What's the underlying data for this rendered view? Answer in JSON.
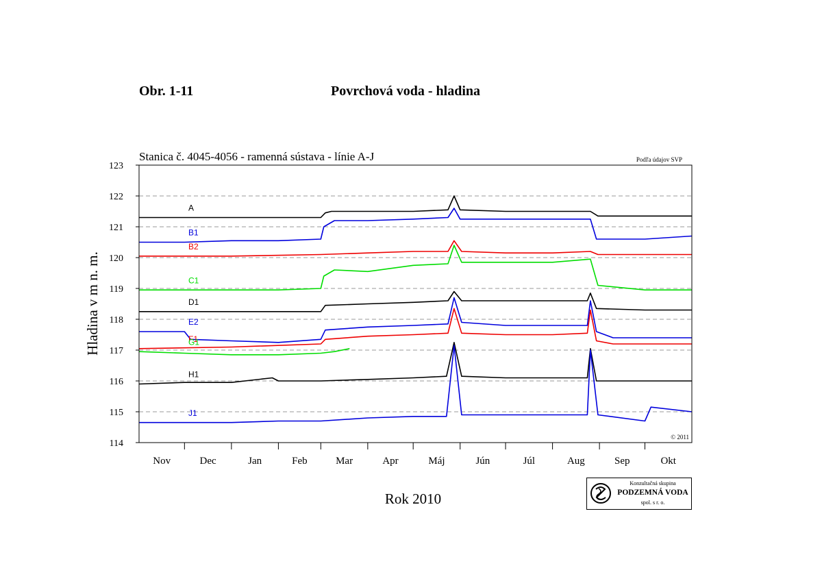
{
  "figure": {
    "label": "Obr. 1-11",
    "title": "Povrchová voda - hladina"
  },
  "chart_data": {
    "type": "line",
    "title": "Stanica č. 4045-4056 - ramenná sústava  - línie A-J",
    "source_note": "Podľa údajov SVP",
    "copyright": "© 2011",
    "xlabel": "Rok 2010",
    "ylabel": "Hladina v m n. m.",
    "ylim": [
      114,
      123
    ],
    "yticks": [
      114,
      115,
      116,
      117,
      118,
      119,
      120,
      121,
      122,
      123
    ],
    "xlim": [
      "2009-11-01",
      "2010-11-01"
    ],
    "months": [
      "Nov",
      "Dec",
      "Jan",
      "Feb",
      "Mar",
      "Apr",
      "Máj",
      "Jún",
      "Júl",
      "Aug",
      "Sep",
      "Okt"
    ],
    "grid": "dashed horizontal at each meter",
    "legend": "inline labels at left",
    "series": [
      {
        "name": "A",
        "color": "#000000",
        "points": [
          [
            "2009-11-01",
            121.3
          ],
          [
            "2009-12-01",
            121.3
          ],
          [
            "2010-01-01",
            121.3
          ],
          [
            "2010-02-01",
            121.3
          ],
          [
            "2010-03-01",
            121.3
          ],
          [
            "2010-03-04",
            121.45
          ],
          [
            "2010-03-08",
            121.5
          ],
          [
            "2010-04-01",
            121.5
          ],
          [
            "2010-05-01",
            121.5
          ],
          [
            "2010-05-24",
            121.55
          ],
          [
            "2010-05-28",
            122.0
          ],
          [
            "2010-06-01",
            121.55
          ],
          [
            "2010-07-01",
            121.5
          ],
          [
            "2010-08-01",
            121.5
          ],
          [
            "2010-08-26",
            121.5
          ],
          [
            "2010-08-31",
            121.35
          ],
          [
            "2010-10-01",
            121.35
          ],
          [
            "2010-11-01",
            121.35
          ]
        ]
      },
      {
        "name": "B1",
        "color": "#0000dd",
        "points": [
          [
            "2009-11-01",
            120.5
          ],
          [
            "2009-12-01",
            120.5
          ],
          [
            "2010-01-01",
            120.55
          ],
          [
            "2010-02-01",
            120.55
          ],
          [
            "2010-03-01",
            120.6
          ],
          [
            "2010-03-03",
            121.0
          ],
          [
            "2010-03-10",
            121.2
          ],
          [
            "2010-04-01",
            121.2
          ],
          [
            "2010-05-01",
            121.25
          ],
          [
            "2010-05-24",
            121.3
          ],
          [
            "2010-05-28",
            121.6
          ],
          [
            "2010-06-01",
            121.25
          ],
          [
            "2010-07-01",
            121.25
          ],
          [
            "2010-08-01",
            121.25
          ],
          [
            "2010-08-26",
            121.25
          ],
          [
            "2010-08-30",
            120.6
          ],
          [
            "2010-10-01",
            120.6
          ],
          [
            "2010-11-01",
            120.7
          ]
        ]
      },
      {
        "name": "B2",
        "color": "#ee0000",
        "points": [
          [
            "2009-11-01",
            120.05
          ],
          [
            "2010-01-01",
            120.05
          ],
          [
            "2010-03-01",
            120.1
          ],
          [
            "2010-04-01",
            120.15
          ],
          [
            "2010-05-01",
            120.2
          ],
          [
            "2010-05-24",
            120.2
          ],
          [
            "2010-05-28",
            120.55
          ],
          [
            "2010-06-02",
            120.2
          ],
          [
            "2010-07-01",
            120.15
          ],
          [
            "2010-08-01",
            120.15
          ],
          [
            "2010-08-26",
            120.2
          ],
          [
            "2010-08-31",
            120.1
          ],
          [
            "2010-11-01",
            120.1
          ]
        ]
      },
      {
        "name": "C1",
        "color": "#00dd00",
        "points": [
          [
            "2009-11-01",
            118.95
          ],
          [
            "2009-12-01",
            118.95
          ],
          [
            "2010-01-01",
            118.95
          ],
          [
            "2010-02-01",
            118.95
          ],
          [
            "2010-03-01",
            119.0
          ],
          [
            "2010-03-03",
            119.4
          ],
          [
            "2010-03-10",
            119.6
          ],
          [
            "2010-04-01",
            119.55
          ],
          [
            "2010-05-01",
            119.75
          ],
          [
            "2010-05-24",
            119.8
          ],
          [
            "2010-05-28",
            120.4
          ],
          [
            "2010-06-02",
            119.85
          ],
          [
            "2010-07-01",
            119.85
          ],
          [
            "2010-08-01",
            119.85
          ],
          [
            "2010-08-26",
            119.95
          ],
          [
            "2010-08-31",
            119.1
          ],
          [
            "2010-10-01",
            118.95
          ],
          [
            "2010-11-01",
            118.95
          ]
        ]
      },
      {
        "name": "D1",
        "color": "#000000",
        "points": [
          [
            "2009-11-01",
            118.25
          ],
          [
            "2010-01-01",
            118.25
          ],
          [
            "2010-03-01",
            118.25
          ],
          [
            "2010-03-04",
            118.45
          ],
          [
            "2010-04-01",
            118.5
          ],
          [
            "2010-05-01",
            118.55
          ],
          [
            "2010-05-24",
            118.6
          ],
          [
            "2010-05-28",
            118.9
          ],
          [
            "2010-06-02",
            118.6
          ],
          [
            "2010-07-01",
            118.6
          ],
          [
            "2010-08-01",
            118.6
          ],
          [
            "2010-08-24",
            118.6
          ],
          [
            "2010-08-26",
            118.85
          ],
          [
            "2010-08-30",
            118.35
          ],
          [
            "2010-10-01",
            118.3
          ],
          [
            "2010-11-01",
            118.3
          ]
        ]
      },
      {
        "name": "E2",
        "color": "#0000dd",
        "points": [
          [
            "2009-11-01",
            117.6
          ],
          [
            "2009-12-01",
            117.6
          ],
          [
            "2009-12-05",
            117.35
          ],
          [
            "2010-01-01",
            117.3
          ],
          [
            "2010-02-01",
            117.25
          ],
          [
            "2010-03-01",
            117.35
          ],
          [
            "2010-03-04",
            117.65
          ],
          [
            "2010-04-01",
            117.75
          ],
          [
            "2010-05-01",
            117.8
          ],
          [
            "2010-05-24",
            117.85
          ],
          [
            "2010-05-28",
            118.7
          ],
          [
            "2010-06-02",
            117.9
          ],
          [
            "2010-07-01",
            117.8
          ],
          [
            "2010-08-01",
            117.8
          ],
          [
            "2010-08-24",
            117.8
          ],
          [
            "2010-08-26",
            118.6
          ],
          [
            "2010-08-30",
            117.6
          ],
          [
            "2010-09-10",
            117.4
          ],
          [
            "2010-11-01",
            117.4
          ]
        ]
      },
      {
        "name": "F1",
        "color": "#ee0000",
        "points": [
          [
            "2009-11-01",
            117.05
          ],
          [
            "2010-01-01",
            117.1
          ],
          [
            "2010-03-01",
            117.2
          ],
          [
            "2010-03-04",
            117.35
          ],
          [
            "2010-04-01",
            117.45
          ],
          [
            "2010-05-01",
            117.5
          ],
          [
            "2010-05-24",
            117.55
          ],
          [
            "2010-05-28",
            118.35
          ],
          [
            "2010-06-02",
            117.55
          ],
          [
            "2010-07-01",
            117.5
          ],
          [
            "2010-08-01",
            117.5
          ],
          [
            "2010-08-24",
            117.55
          ],
          [
            "2010-08-26",
            118.3
          ],
          [
            "2010-08-30",
            117.3
          ],
          [
            "2010-09-10",
            117.2
          ],
          [
            "2010-11-01",
            117.2
          ]
        ]
      },
      {
        "name": "G1",
        "color": "#00dd00",
        "points": [
          [
            "2009-11-01",
            116.95
          ],
          [
            "2009-12-01",
            116.9
          ],
          [
            "2010-01-01",
            116.85
          ],
          [
            "2010-02-01",
            116.85
          ],
          [
            "2010-03-01",
            116.9
          ],
          [
            "2010-03-10",
            116.95
          ],
          [
            "2010-03-20",
            117.05
          ]
        ]
      },
      {
        "name": "H1",
        "color": "#000000",
        "points": [
          [
            "2009-11-01",
            115.9
          ],
          [
            "2009-12-01",
            115.95
          ],
          [
            "2010-01-01",
            115.95
          ],
          [
            "2010-01-28",
            116.1
          ],
          [
            "2010-02-01",
            116.0
          ],
          [
            "2010-03-01",
            116.0
          ],
          [
            "2010-04-01",
            116.05
          ],
          [
            "2010-05-01",
            116.1
          ],
          [
            "2010-05-23",
            116.15
          ],
          [
            "2010-05-28",
            117.25
          ],
          [
            "2010-06-02",
            116.15
          ],
          [
            "2010-07-01",
            116.1
          ],
          [
            "2010-08-01",
            116.1
          ],
          [
            "2010-08-24",
            116.1
          ],
          [
            "2010-08-26",
            117.05
          ],
          [
            "2010-08-30",
            116.0
          ],
          [
            "2010-11-01",
            116.0
          ]
        ]
      },
      {
        "name": "J1",
        "color": "#0000dd",
        "points": [
          [
            "2009-11-01",
            114.65
          ],
          [
            "2009-12-01",
            114.65
          ],
          [
            "2010-01-01",
            114.65
          ],
          [
            "2010-02-01",
            114.7
          ],
          [
            "2010-03-01",
            114.7
          ],
          [
            "2010-04-01",
            114.8
          ],
          [
            "2010-05-01",
            114.85
          ],
          [
            "2010-05-23",
            114.85
          ],
          [
            "2010-05-28",
            117.15
          ],
          [
            "2010-06-02",
            114.9
          ],
          [
            "2010-07-01",
            114.9
          ],
          [
            "2010-08-01",
            114.9
          ],
          [
            "2010-08-24",
            114.9
          ],
          [
            "2010-08-26",
            117.0
          ],
          [
            "2010-08-31",
            114.9
          ],
          [
            "2010-10-01",
            114.7
          ],
          [
            "2010-10-05",
            115.15
          ],
          [
            "2010-11-01",
            115.0
          ]
        ]
      }
    ]
  },
  "logo": {
    "line1": "Konzultačná skupina",
    "line2": "PODZEMNÁ VODA",
    "line3": "spol. s r. o."
  }
}
